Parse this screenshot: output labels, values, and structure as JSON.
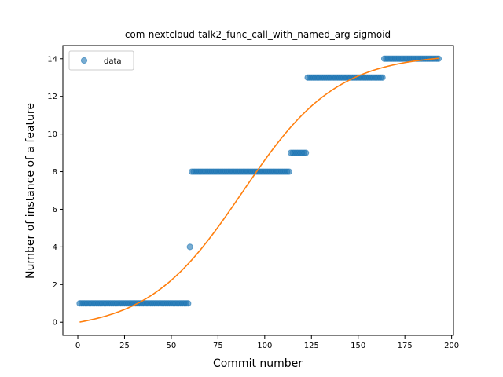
{
  "chart_data": {
    "type": "scatter",
    "title": "com-nextcloud-talk2_func_call_with_named_arg-sigmoid",
    "xlabel": "Commit number",
    "ylabel": "Number of instance of a feature",
    "xlim": [
      -8,
      201
    ],
    "ylim": [
      -0.7,
      14.7
    ],
    "xticks": [
      0,
      25,
      50,
      75,
      100,
      125,
      150,
      175,
      200
    ],
    "yticks": [
      0,
      2,
      4,
      6,
      8,
      10,
      12,
      14
    ],
    "grid": false,
    "legend": {
      "position": "top-left",
      "entries": [
        "data"
      ]
    },
    "colors": {
      "data": "#1f77b4",
      "fit": "#ff7f0e"
    },
    "series": [
      {
        "name": "data",
        "kind": "scatter",
        "segments": [
          {
            "x_start": 1,
            "x_end": 59,
            "y": 1
          },
          {
            "x_start": 60,
            "x_end": 60,
            "y": 4
          },
          {
            "x_start": 61,
            "x_end": 113,
            "y": 8
          },
          {
            "x_start": 114,
            "x_end": 122,
            "y": 9
          },
          {
            "x_start": 123,
            "x_end": 163,
            "y": 13
          },
          {
            "x_start": 164,
            "x_end": 193,
            "y": 14
          }
        ]
      },
      {
        "kind": "line",
        "sigmoid": {
          "L": 14.7,
          "k": 0.0395,
          "x0": 88,
          "b": -0.45
        },
        "x_range": [
          1,
          193
        ]
      }
    ]
  }
}
